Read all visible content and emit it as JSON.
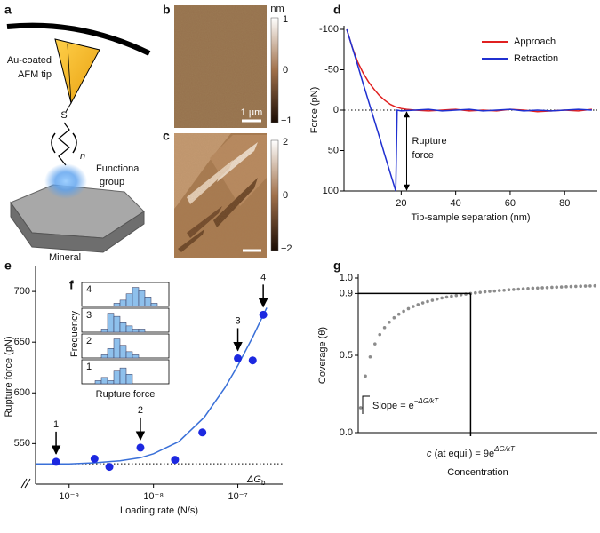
{
  "panel_labels": [
    "a",
    "b",
    "c",
    "d",
    "e",
    "f",
    "g"
  ],
  "panel_a": {
    "tip_label": [
      "Au-coated",
      "AFM tip"
    ],
    "sulfur": "S",
    "repeat": "n",
    "group_label": [
      "Functional",
      "group"
    ],
    "mineral_label": "Mineral"
  },
  "panel_b": {
    "unit": "nm",
    "colorbar": [
      "1",
      "0",
      "−1"
    ],
    "scale_bar": "1 µm"
  },
  "panel_c": {
    "colorbar": [
      "2",
      "0",
      "−2"
    ]
  },
  "chart_data": [
    {
      "type": "line",
      "ylabel": "Force (pN)",
      "xlabel": "Tip-sample separation (nm)",
      "xlim": [
        -1,
        92
      ],
      "ylim": [
        -100,
        100
      ],
      "y_inverted": true,
      "xticks": [
        20,
        40,
        60,
        80
      ],
      "yticks": [
        -100,
        -50,
        0,
        50,
        100
      ],
      "legend": "upper right",
      "zero_line": 0,
      "annotation": [
        "Rupture",
        "force"
      ],
      "series": [
        {
          "name": "Approach",
          "color": "#e02020",
          "x": [
            0,
            2,
            4,
            6,
            8,
            10,
            12,
            14,
            16,
            18,
            20,
            22,
            25,
            30,
            35,
            40,
            45,
            50,
            55,
            60,
            65,
            70,
            75,
            80,
            85,
            90
          ],
          "values": [
            -100,
            -78,
            -60,
            -46,
            -35,
            -26,
            -18,
            -12,
            -7,
            -4,
            -2,
            -1,
            0,
            1,
            0,
            -1,
            1,
            0,
            1,
            -1,
            0,
            2,
            1,
            0,
            1,
            -1
          ]
        },
        {
          "name": "Retraction",
          "color": "#2030d0",
          "x": [
            0,
            2,
            4,
            6,
            8,
            10,
            12,
            14,
            16,
            18,
            18.5,
            20,
            25,
            30,
            35,
            40,
            45,
            50,
            55,
            60,
            65,
            70,
            75,
            80,
            85,
            90
          ],
          "values": [
            -100,
            -78,
            -56,
            -33,
            -11,
            11,
            33,
            56,
            78,
            100,
            0,
            1,
            0,
            -1,
            1,
            0,
            -1,
            1,
            0,
            -1,
            1,
            0,
            1,
            0,
            -1,
            0
          ]
        }
      ]
    },
    {
      "type": "scatter",
      "ylabel": "Rupture force (pN)",
      "xlabel": "Loading rate (N/s)",
      "xscale": "log",
      "xlim": [
        4e-10,
        3.4e-07
      ],
      "ylim": [
        510,
        722
      ],
      "xticks": [
        {
          "value": 1e-09,
          "label": "10⁻⁹"
        },
        {
          "value": 1e-08,
          "label": "10⁻⁸"
        },
        {
          "value": 1e-07,
          "label": "10⁻⁷"
        }
      ],
      "yticks": [
        550,
        600,
        650,
        700
      ],
      "color": "#1c28e0",
      "x": [
        7e-10,
        2e-09,
        3e-09,
        7e-09,
        1.8e-08,
        3.8e-08,
        1e-07,
        1.5e-07,
        2e-07
      ],
      "values": [
        532,
        535,
        527,
        546,
        534,
        561,
        634,
        632,
        677
      ],
      "point_labels": [
        "1",
        null,
        null,
        "2",
        null,
        null,
        "3",
        null,
        "4"
      ],
      "fit": {
        "color": "#3a70d8",
        "x": [
          4e-10,
          1e-09,
          2e-09,
          4e-09,
          7e-09,
          1e-08,
          2e-08,
          4e-08,
          7e-08,
          1e-07,
          1.5e-07,
          2.2e-07
        ],
        "values": [
          530,
          530,
          531,
          533,
          536,
          540,
          552,
          576,
          605,
          627,
          655,
          684
        ]
      },
      "reference": {
        "value": 530,
        "label": "ΔG",
        "label_sub": "b"
      }
    },
    {
      "type": "histogram",
      "ylabel": "Frequency",
      "xlabel": "Rupture force",
      "color": "#8ec0ec",
      "ylim": [
        0,
        7
      ],
      "series": [
        {
          "name": "4",
          "values": [
            0,
            0,
            0,
            0,
            1,
            2,
            4,
            6,
            5,
            3,
            1,
            0
          ]
        },
        {
          "name": "3",
          "values": [
            0,
            0,
            1,
            6,
            5,
            3,
            2,
            1,
            1,
            0,
            0,
            0
          ]
        },
        {
          "name": "2",
          "values": [
            0,
            0,
            1,
            3,
            6,
            4,
            2,
            1,
            0,
            0,
            0,
            0
          ]
        },
        {
          "name": "1",
          "values": [
            0,
            1,
            2,
            1,
            4,
            5,
            3,
            0,
            0,
            0,
            0,
            0
          ]
        }
      ]
    },
    {
      "type": "scatter",
      "ylabel": "Coverage (θ)",
      "xlabel": "Concentration",
      "xlim": [
        0,
        1
      ],
      "ylim": [
        0,
        1
      ],
      "yticks": [
        {
          "value": 0,
          "label": "0.0"
        },
        0.5,
        0.9,
        {
          "value": 1,
          "label": "1.0"
        }
      ],
      "color": "#8c8c8c",
      "x": [
        0.01,
        0.03,
        0.05,
        0.07,
        0.09,
        0.11,
        0.13,
        0.15,
        0.17,
        0.19,
        0.21,
        0.23,
        0.25,
        0.27,
        0.29,
        0.31,
        0.33,
        0.35,
        0.37,
        0.39,
        0.41,
        0.43,
        0.45,
        0.47,
        0.49,
        0.51,
        0.53,
        0.55,
        0.57,
        0.59,
        0.61,
        0.63,
        0.65,
        0.67,
        0.69,
        0.71,
        0.73,
        0.75,
        0.77,
        0.79,
        0.81,
        0.83,
        0.85,
        0.87,
        0.89,
        0.91,
        0.93,
        0.95,
        0.97,
        0.99
      ],
      "values": [
        0.161,
        0.366,
        0.49,
        0.574,
        0.634,
        0.679,
        0.714,
        0.743,
        0.766,
        0.785,
        0.802,
        0.816,
        0.828,
        0.839,
        0.848,
        0.856,
        0.864,
        0.871,
        0.877,
        0.882,
        0.887,
        0.892,
        0.896,
        0.9,
        0.904,
        0.907,
        0.911,
        0.914,
        0.916,
        0.919,
        0.921,
        0.924,
        0.926,
        0.928,
        0.93,
        0.932,
        0.934,
        0.935,
        0.937,
        0.938,
        0.94,
        0.941,
        0.942,
        0.944,
        0.945,
        0.946,
        0.947,
        0.948,
        0.949,
        0.95
      ],
      "guide": {
        "x": 0.47,
        "y": 0.9
      },
      "slope_label": [
        "Slope = e",
        "−ΔG/kT"
      ],
      "equil_label": [
        "c",
        " (at equil) = 9e",
        "ΔG/kT"
      ]
    }
  ]
}
